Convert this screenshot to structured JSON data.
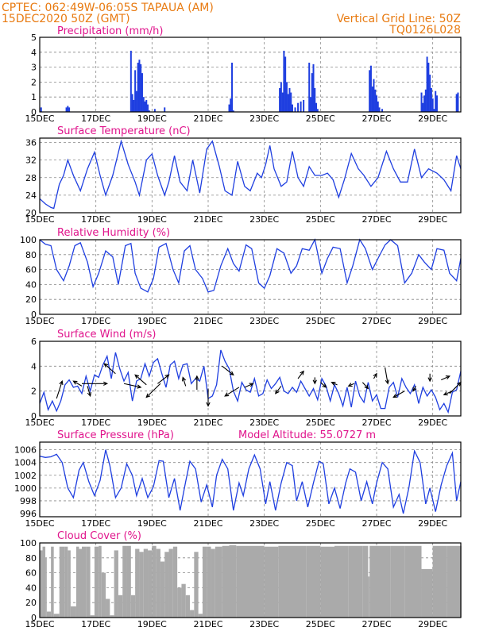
{
  "header": {
    "line1": "CPTEC:   062:49W-06:05S   TAPAUA (AM)",
    "line2": "15DEC2020 50Z (GMT)",
    "right1": "Vertical Grid Line: 50Z",
    "right2": "TQ0126L028"
  },
  "colors": {
    "series": "#1f3fe0",
    "title": "#e0148c",
    "header": "#e87a10",
    "cloud": "#aaaaaa"
  },
  "chart_data": [
    {
      "type": "bar",
      "title": "Precipitation (mm/h)",
      "ylim": [
        0,
        5
      ],
      "yticks": [
        0,
        1,
        2,
        3,
        4,
        5
      ],
      "xlim": [
        15,
        30
      ],
      "xticks": [
        "15DEC",
        "17DEC",
        "19DEC",
        "21DEC",
        "23DEC",
        "25DEC",
        "27DEC",
        "29DEC"
      ],
      "x": [
        15.05,
        15.95,
        16.0,
        16.05,
        18.25,
        18.3,
        18.35,
        18.4,
        18.45,
        18.5,
        18.55,
        18.6,
        18.65,
        18.7,
        18.75,
        18.8,
        18.85,
        18.9,
        19.1,
        19.45,
        21.75,
        21.8,
        21.85,
        21.9,
        23.55,
        23.6,
        23.65,
        23.7,
        23.75,
        23.8,
        23.85,
        23.9,
        23.95,
        24.0,
        24.1,
        24.2,
        24.3,
        24.4,
        24.6,
        24.65,
        24.7,
        24.75,
        24.8,
        24.85,
        24.9,
        26.75,
        26.8,
        26.85,
        26.9,
        26.95,
        27.0,
        27.05,
        27.1,
        27.2,
        28.6,
        28.65,
        28.7,
        28.75,
        28.8,
        28.85,
        28.9,
        28.95,
        29.0,
        29.05,
        29.1,
        29.15,
        29.85,
        29.9
      ],
      "values": [
        0.3,
        0.3,
        0.4,
        0.3,
        4.1,
        1.2,
        0.8,
        2.8,
        1.4,
        3.3,
        3.5,
        3.2,
        2.6,
        1.0,
        0.7,
        0.8,
        0.5,
        0.1,
        0.2,
        0.3,
        0.5,
        0.9,
        3.3,
        0.1,
        1.6,
        2.0,
        1.3,
        4.1,
        3.7,
        2.0,
        1.2,
        1.6,
        1.3,
        0.5,
        0.3,
        0.6,
        0.7,
        0.8,
        3.3,
        1.0,
        2.6,
        3.2,
        1.6,
        0.6,
        0.2,
        2.8,
        3.1,
        1.7,
        2.2,
        1.5,
        1.1,
        0.7,
        0.3,
        0.2,
        1.3,
        0.6,
        1.1,
        1.5,
        3.7,
        3.3,
        2.5,
        1.6,
        0.9,
        0.2,
        1.4,
        1.1,
        1.2,
        1.3
      ]
    },
    {
      "type": "line",
      "title": "Surface Temperature (nC)",
      "ylim": [
        20,
        37
      ],
      "yticks": [
        20,
        24,
        28,
        32,
        36
      ],
      "xlim": [
        15,
        30
      ],
      "xticks": [
        "15DEC",
        "17DEC",
        "19DEC",
        "21DEC",
        "23DEC",
        "25DEC",
        "27DEC",
        "29DEC"
      ],
      "x": [
        15.0,
        15.2,
        15.4,
        15.5,
        15.7,
        15.85,
        16.0,
        16.2,
        16.45,
        16.7,
        16.95,
        17.15,
        17.35,
        17.6,
        17.9,
        18.15,
        18.4,
        18.55,
        18.8,
        19.0,
        19.2,
        19.45,
        19.6,
        19.8,
        20.0,
        20.25,
        20.45,
        20.7,
        20.95,
        21.15,
        21.4,
        21.6,
        21.85,
        22.05,
        22.3,
        22.5,
        22.75,
        22.9,
        23.05,
        23.2,
        23.35,
        23.6,
        23.8,
        24.0,
        24.2,
        24.4,
        24.6,
        24.8,
        25.05,
        25.25,
        25.45,
        25.65,
        25.85,
        26.1,
        26.35,
        26.55,
        26.8,
        27.05,
        27.35,
        27.6,
        27.85,
        28.1,
        28.35,
        28.6,
        28.85,
        29.15,
        29.4,
        29.65,
        29.85,
        30.0
      ],
      "values": [
        23.2,
        22.0,
        21.2,
        21.0,
        26.5,
        28.5,
        32.0,
        28.5,
        25.0,
        30.0,
        33.8,
        28.5,
        24.0,
        28.5,
        36.3,
        31.0,
        27.0,
        24.0,
        32.0,
        33.4,
        28.5,
        24.0,
        27.0,
        33.0,
        27.0,
        25.0,
        32.0,
        24.5,
        34.5,
        36.3,
        30.5,
        25.0,
        24.0,
        31.7,
        26.0,
        25.0,
        29.0,
        28.0,
        31.0,
        35.3,
        30.0,
        26.0,
        27.0,
        34.0,
        28.0,
        26.0,
        30.5,
        28.5,
        28.5,
        29.0,
        27.5,
        23.5,
        27.5,
        33.5,
        30.0,
        28.5,
        26.0,
        28.0,
        34.0,
        30.0,
        27.0,
        27.0,
        34.5,
        28.0,
        30.0,
        29.0,
        27.5,
        25.0,
        33.0,
        30.0
      ]
    },
    {
      "type": "line",
      "title": "Relative Humidity (%)",
      "ylim": [
        0,
        100
      ],
      "yticks": [
        0,
        20,
        40,
        60,
        80,
        100
      ],
      "xlim": [
        15,
        30
      ],
      "xticks": [
        "15DEC",
        "17DEC",
        "19DEC",
        "21DEC",
        "23DEC",
        "25DEC",
        "27DEC",
        "29DEC"
      ],
      "x": [
        15.0,
        15.2,
        15.4,
        15.6,
        15.85,
        16.05,
        16.25,
        16.45,
        16.7,
        16.9,
        17.1,
        17.35,
        17.6,
        17.8,
        18.05,
        18.25,
        18.4,
        18.6,
        18.85,
        19.05,
        19.25,
        19.5,
        19.75,
        19.95,
        20.15,
        20.35,
        20.55,
        20.8,
        21.0,
        21.2,
        21.45,
        21.7,
        21.9,
        22.1,
        22.35,
        22.55,
        22.8,
        23.0,
        23.2,
        23.45,
        23.7,
        23.95,
        24.15,
        24.35,
        24.6,
        24.8,
        25.05,
        25.25,
        25.45,
        25.7,
        25.95,
        26.15,
        26.4,
        26.6,
        26.85,
        27.05,
        27.3,
        27.5,
        27.75,
        28.0,
        28.25,
        28.5,
        28.7,
        28.95,
        29.15,
        29.4,
        29.6,
        29.85,
        30.0
      ],
      "values": [
        100,
        94,
        92,
        60,
        45,
        65,
        92,
        96,
        70,
        37,
        55,
        85,
        77,
        40,
        92,
        95,
        55,
        35,
        30,
        48,
        90,
        95,
        60,
        42,
        85,
        92,
        60,
        48,
        30,
        32,
        65,
        88,
        68,
        58,
        93,
        88,
        42,
        35,
        52,
        88,
        82,
        55,
        65,
        88,
        86,
        100,
        55,
        75,
        90,
        88,
        42,
        65,
        100,
        88,
        60,
        75,
        93,
        100,
        92,
        42,
        55,
        80,
        70,
        60,
        88,
        86,
        55,
        45,
        75
      ]
    },
    {
      "type": "line",
      "title": "Surface Wind (m/s)",
      "ylim": [
        0,
        6
      ],
      "yticks": [
        0,
        2,
        4,
        6
      ],
      "xlim": [
        15,
        30
      ],
      "xticks": [
        "15DEC",
        "17DEC",
        "19DEC",
        "21DEC",
        "23DEC",
        "25DEC",
        "27DEC",
        "29DEC"
      ],
      "x": [
        15.0,
        15.15,
        15.3,
        15.45,
        15.6,
        15.75,
        15.9,
        16.05,
        16.2,
        16.35,
        16.5,
        16.65,
        16.8,
        16.95,
        17.1,
        17.25,
        17.4,
        17.55,
        17.7,
        17.85,
        18.0,
        18.15,
        18.3,
        18.45,
        18.6,
        18.75,
        18.9,
        19.05,
        19.2,
        19.35,
        19.5,
        19.65,
        19.8,
        19.95,
        20.1,
        20.25,
        20.4,
        20.55,
        20.7,
        20.85,
        21.0,
        21.15,
        21.3,
        21.45,
        21.6,
        21.75,
        21.9,
        22.05,
        22.2,
        22.35,
        22.5,
        22.65,
        22.8,
        22.95,
        23.1,
        23.25,
        23.4,
        23.55,
        23.7,
        23.85,
        24.0,
        24.15,
        24.3,
        24.45,
        24.6,
        24.75,
        24.9,
        25.05,
        25.2,
        25.35,
        25.5,
        25.65,
        25.8,
        25.95,
        26.1,
        26.25,
        26.4,
        26.55,
        26.7,
        26.85,
        27.0,
        27.15,
        27.3,
        27.45,
        27.6,
        27.75,
        27.9,
        28.05,
        28.2,
        28.35,
        28.5,
        28.65,
        28.8,
        28.95,
        29.1,
        29.25,
        29.4,
        29.55,
        29.7,
        29.85,
        30.0
      ],
      "values": [
        1.0,
        1.9,
        0.5,
        1.2,
        0.4,
        1.2,
        2.5,
        2.9,
        2.3,
        2.4,
        1.8,
        3.2,
        2.0,
        3.3,
        3.1,
        4.1,
        4.8,
        3.0,
        5.1,
        3.8,
        2.8,
        3.5,
        1.2,
        2.8,
        3.0,
        4.2,
        3.2,
        4.3,
        4.6,
        3.4,
        2.3,
        4.1,
        4.4,
        3.0,
        4.1,
        4.2,
        2.6,
        3.0,
        2.8,
        4.0,
        1.4,
        1.6,
        2.5,
        5.3,
        4.4,
        3.8,
        2.0,
        1.2,
        2.7,
        2.1,
        1.9,
        3.0,
        1.6,
        1.8,
        2.9,
        2.2,
        2.6,
        3.1,
        2.0,
        1.8,
        2.3,
        1.9,
        2.8,
        2.2,
        1.6,
        2.2,
        1.3,
        3.0,
        2.4,
        1.2,
        2.5,
        1.8,
        0.8,
        2.3,
        0.7,
        2.8,
        1.6,
        1.1,
        2.7,
        1.2,
        1.7,
        0.6,
        0.6,
        2.3,
        2.7,
        1.5,
        3.0,
        2.3,
        1.8,
        2.5,
        1.0,
        2.3,
        1.6,
        2.1,
        1.5,
        0.5,
        1.0,
        0.3,
        1.9,
        2.1,
        3.6
      ]
    },
    {
      "type": "line",
      "title": "Surface Pressure (hPa)",
      "annotation": "Model Altitude: 55.0727 m",
      "ylim": [
        995.5,
        1007.2
      ],
      "yticks": [
        996,
        998,
        1000,
        1002,
        1004,
        1006
      ],
      "xlim": [
        15,
        30
      ],
      "xticks": [
        "15DEC",
        "17DEC",
        "19DEC",
        "21DEC",
        "23DEC",
        "25DEC",
        "27DEC",
        "29DEC"
      ],
      "x": [
        15.0,
        15.2,
        15.4,
        15.6,
        15.8,
        16.0,
        16.2,
        16.4,
        16.55,
        16.75,
        16.95,
        17.15,
        17.35,
        17.5,
        17.7,
        17.9,
        18.1,
        18.3,
        18.45,
        18.65,
        18.85,
        19.05,
        19.25,
        19.4,
        19.6,
        19.8,
        20.0,
        20.2,
        20.35,
        20.55,
        20.75,
        20.95,
        21.15,
        21.3,
        21.5,
        21.7,
        21.9,
        22.1,
        22.25,
        22.45,
        22.65,
        22.85,
        23.05,
        23.2,
        23.4,
        23.6,
        23.8,
        24.0,
        24.15,
        24.35,
        24.55,
        24.75,
        24.95,
        25.1,
        25.3,
        25.5,
        25.7,
        25.9,
        26.05,
        26.25,
        26.45,
        26.65,
        26.85,
        27.0,
        27.2,
        27.4,
        27.6,
        27.8,
        27.95,
        28.15,
        28.35,
        28.55,
        28.75,
        28.9,
        29.1,
        29.3,
        29.5,
        29.7,
        29.85,
        30.0
      ],
      "values": [
        1005.0,
        1004.8,
        1004.9,
        1005.3,
        1004.0,
        1000.0,
        998.5,
        1002.8,
        1004.0,
        1001.0,
        998.8,
        1001.2,
        1006.0,
        1003.5,
        998.5,
        1000.0,
        1003.8,
        1002.0,
        998.8,
        1001.5,
        998.5,
        1000.2,
        1004.3,
        1004.2,
        998.5,
        1001.5,
        996.5,
        1001.0,
        1004.2,
        1003.0,
        997.8,
        1000.5,
        997.0,
        1002.0,
        1004.5,
        1003.0,
        996.5,
        1000.8,
        998.8,
        1003.0,
        1005.2,
        1003.0,
        997.5,
        1001.0,
        996.5,
        1000.8,
        1004.0,
        1003.5,
        998.0,
        1001.0,
        997.0,
        1000.8,
        1004.2,
        1003.8,
        997.5,
        1000.0,
        996.8,
        1000.8,
        1003.0,
        1002.5,
        998.0,
        1001.0,
        997.5,
        1000.8,
        1004.0,
        1003.0,
        997.0,
        999.0,
        996.0,
        1000.0,
        1005.8,
        1004.0,
        997.5,
        1000.0,
        996.3,
        1000.5,
        1003.5,
        1005.5,
        998.0,
        1001.0
      ]
    },
    {
      "type": "bar",
      "title": "Cloud Cover (%)",
      "ylim": [
        0,
        100
      ],
      "yticks": [
        0,
        20,
        40,
        60,
        80,
        100
      ],
      "xlim": [
        15,
        30
      ],
      "xticks": [
        "15DEC",
        "17DEC",
        "19DEC",
        "21DEC",
        "23DEC",
        "25DEC",
        "27DEC",
        "29DEC"
      ],
      "x": [
        15.0,
        15.1,
        15.2,
        15.25,
        15.4,
        15.5,
        15.7,
        15.9,
        16.0,
        16.1,
        16.3,
        16.4,
        16.5,
        16.65,
        16.8,
        16.95,
        17.1,
        17.2,
        17.35,
        17.5,
        17.65,
        17.8,
        17.95,
        18.1,
        18.25,
        18.4,
        18.55,
        18.7,
        18.85,
        19.0,
        19.15,
        19.3,
        19.45,
        19.6,
        19.75,
        19.9,
        20.05,
        20.2,
        20.35,
        20.5,
        20.65,
        20.8,
        20.95,
        21.1,
        21.25,
        21.5,
        21.75,
        22.0,
        22.5,
        23.0,
        23.5,
        24.0,
        24.5,
        25.0,
        25.5,
        26.0,
        26.5,
        26.7,
        26.75,
        27.0,
        27.5,
        28.0,
        28.5,
        28.6,
        29.0,
        29.5,
        30.0
      ],
      "values": [
        90,
        95,
        80,
        8,
        95,
        5,
        95,
        95,
        90,
        15,
        95,
        92,
        95,
        95,
        3,
        95,
        96,
        60,
        25,
        3,
        90,
        30,
        96,
        96,
        30,
        92,
        88,
        92,
        90,
        96,
        92,
        75,
        88,
        92,
        95,
        40,
        45,
        30,
        10,
        88,
        5,
        95,
        95,
        92,
        95,
        96,
        97,
        96,
        96,
        95,
        96,
        96,
        96,
        95,
        96,
        96,
        96,
        55,
        96,
        96,
        96,
        96,
        96,
        65,
        96,
        96,
        96
      ]
    }
  ]
}
